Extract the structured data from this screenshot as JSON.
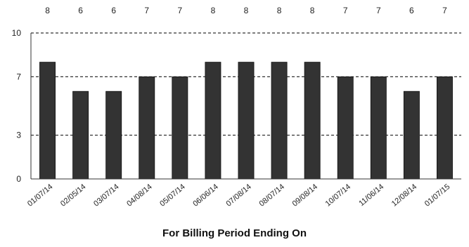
{
  "chart_data": {
    "type": "bar",
    "title": "",
    "xlabel": "For Billing Period Ending On",
    "ylabel": "",
    "categories": [
      "01/07/14",
      "02/05/14",
      "03/07/14",
      "04/08/14",
      "05/07/14",
      "06/06/14",
      "07/08/14",
      "08/07/14",
      "09/08/14",
      "10/07/14",
      "11/06/14",
      "12/08/14",
      "01/07/15"
    ],
    "values": [
      8,
      6,
      6,
      7,
      7,
      8,
      8,
      8,
      8,
      7,
      7,
      6,
      7
    ],
    "data_labels": [
      "8",
      "6",
      "6",
      "7",
      "7",
      "8",
      "8",
      "8",
      "8",
      "7",
      "7",
      "6",
      "7"
    ],
    "yticks": [
      "0",
      "3",
      "7",
      "10"
    ],
    "ylim": [
      0,
      10
    ],
    "grid": true,
    "bar_color": "#333333"
  }
}
